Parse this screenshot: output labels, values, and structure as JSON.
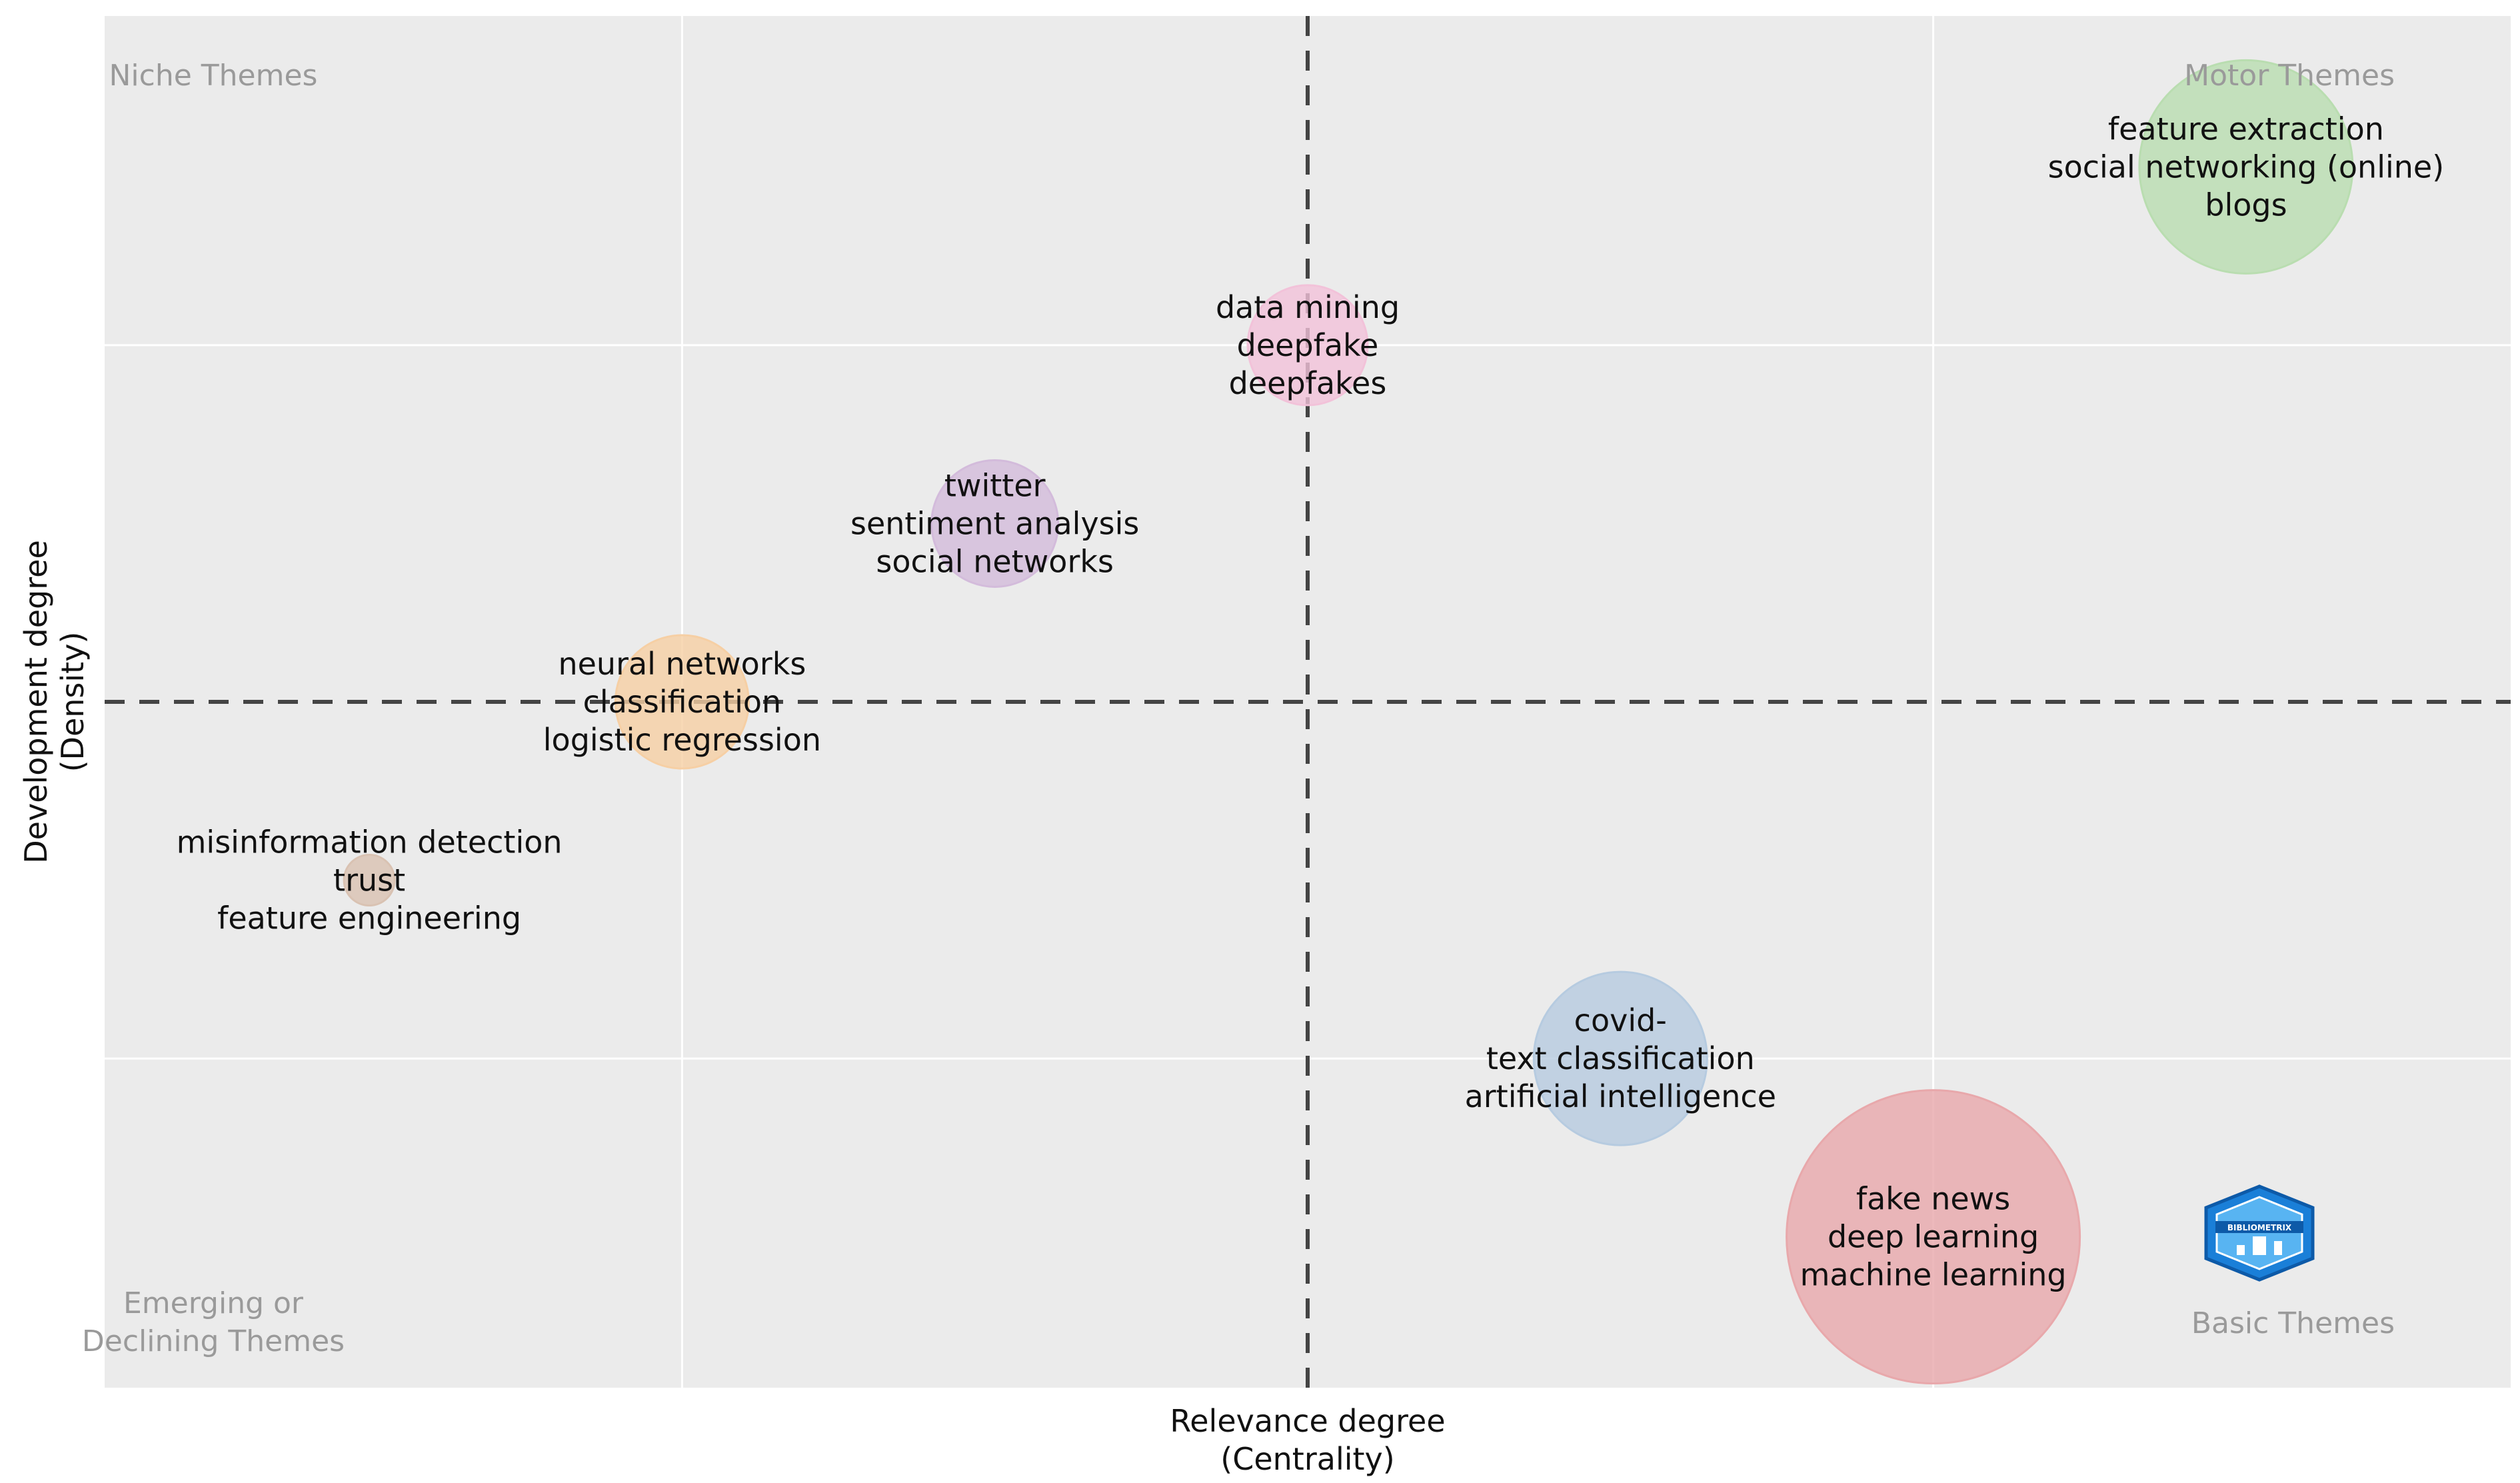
{
  "chart_data": {
    "type": "scatter",
    "subtype": "bubble / thematic map",
    "xlabel": [
      "Relevance degree",
      "(Centrality)"
    ],
    "ylabel": [
      "Development degree",
      "(Density)"
    ],
    "grid": true,
    "quadrant_labels": {
      "top_left": [
        "Niche Themes"
      ],
      "top_right": [
        "Motor Themes"
      ],
      "bottom_left": [
        "Emerging or",
        "Declining Themes"
      ],
      "bottom_right": [
        "Basic Themes"
      ]
    },
    "reference_lines": {
      "x": 0.5,
      "y": 0.5
    },
    "xlim": [
      0,
      1
    ],
    "ylim": [
      0,
      1
    ],
    "bubbles": [
      {
        "labels": [
          "feature extraction",
          "social networking (online)",
          "blogs"
        ],
        "x": 0.89,
        "y": 0.89,
        "size": 160,
        "color": "#b9ddb0"
      },
      {
        "labels": [
          "data mining",
          "deepfake",
          "deepfakes"
        ],
        "x": 0.5,
        "y": 0.76,
        "size": 90,
        "color": "#f2c2d9"
      },
      {
        "labels": [
          "twitter",
          "sentiment analysis",
          "social networks"
        ],
        "x": 0.37,
        "y": 0.63,
        "size": 95,
        "color": "#d3bbdb"
      },
      {
        "labels": [
          "neural networks",
          "classification",
          "logistic regression"
        ],
        "x": 0.24,
        "y": 0.5,
        "size": 100,
        "color": "#f6cfa4"
      },
      {
        "labels": [
          "misinformation detection",
          "trust",
          "feature engineering"
        ],
        "x": 0.11,
        "y": 0.37,
        "size": 38,
        "color": "#d9c2b2"
      },
      {
        "labels": [
          "covid-",
          "text classification",
          "artificial intelligence"
        ],
        "x": 0.63,
        "y": 0.24,
        "size": 130,
        "color": "#b6cbe0"
      },
      {
        "labels": [
          "fake news",
          "deep learning",
          "machine learning"
        ],
        "x": 0.76,
        "y": 0.11,
        "size": 220,
        "color": "#e8a8ab"
      }
    ]
  },
  "logo": {
    "name": "bibliometrix-logo-icon",
    "text": "BIBLIOMETRIX"
  }
}
